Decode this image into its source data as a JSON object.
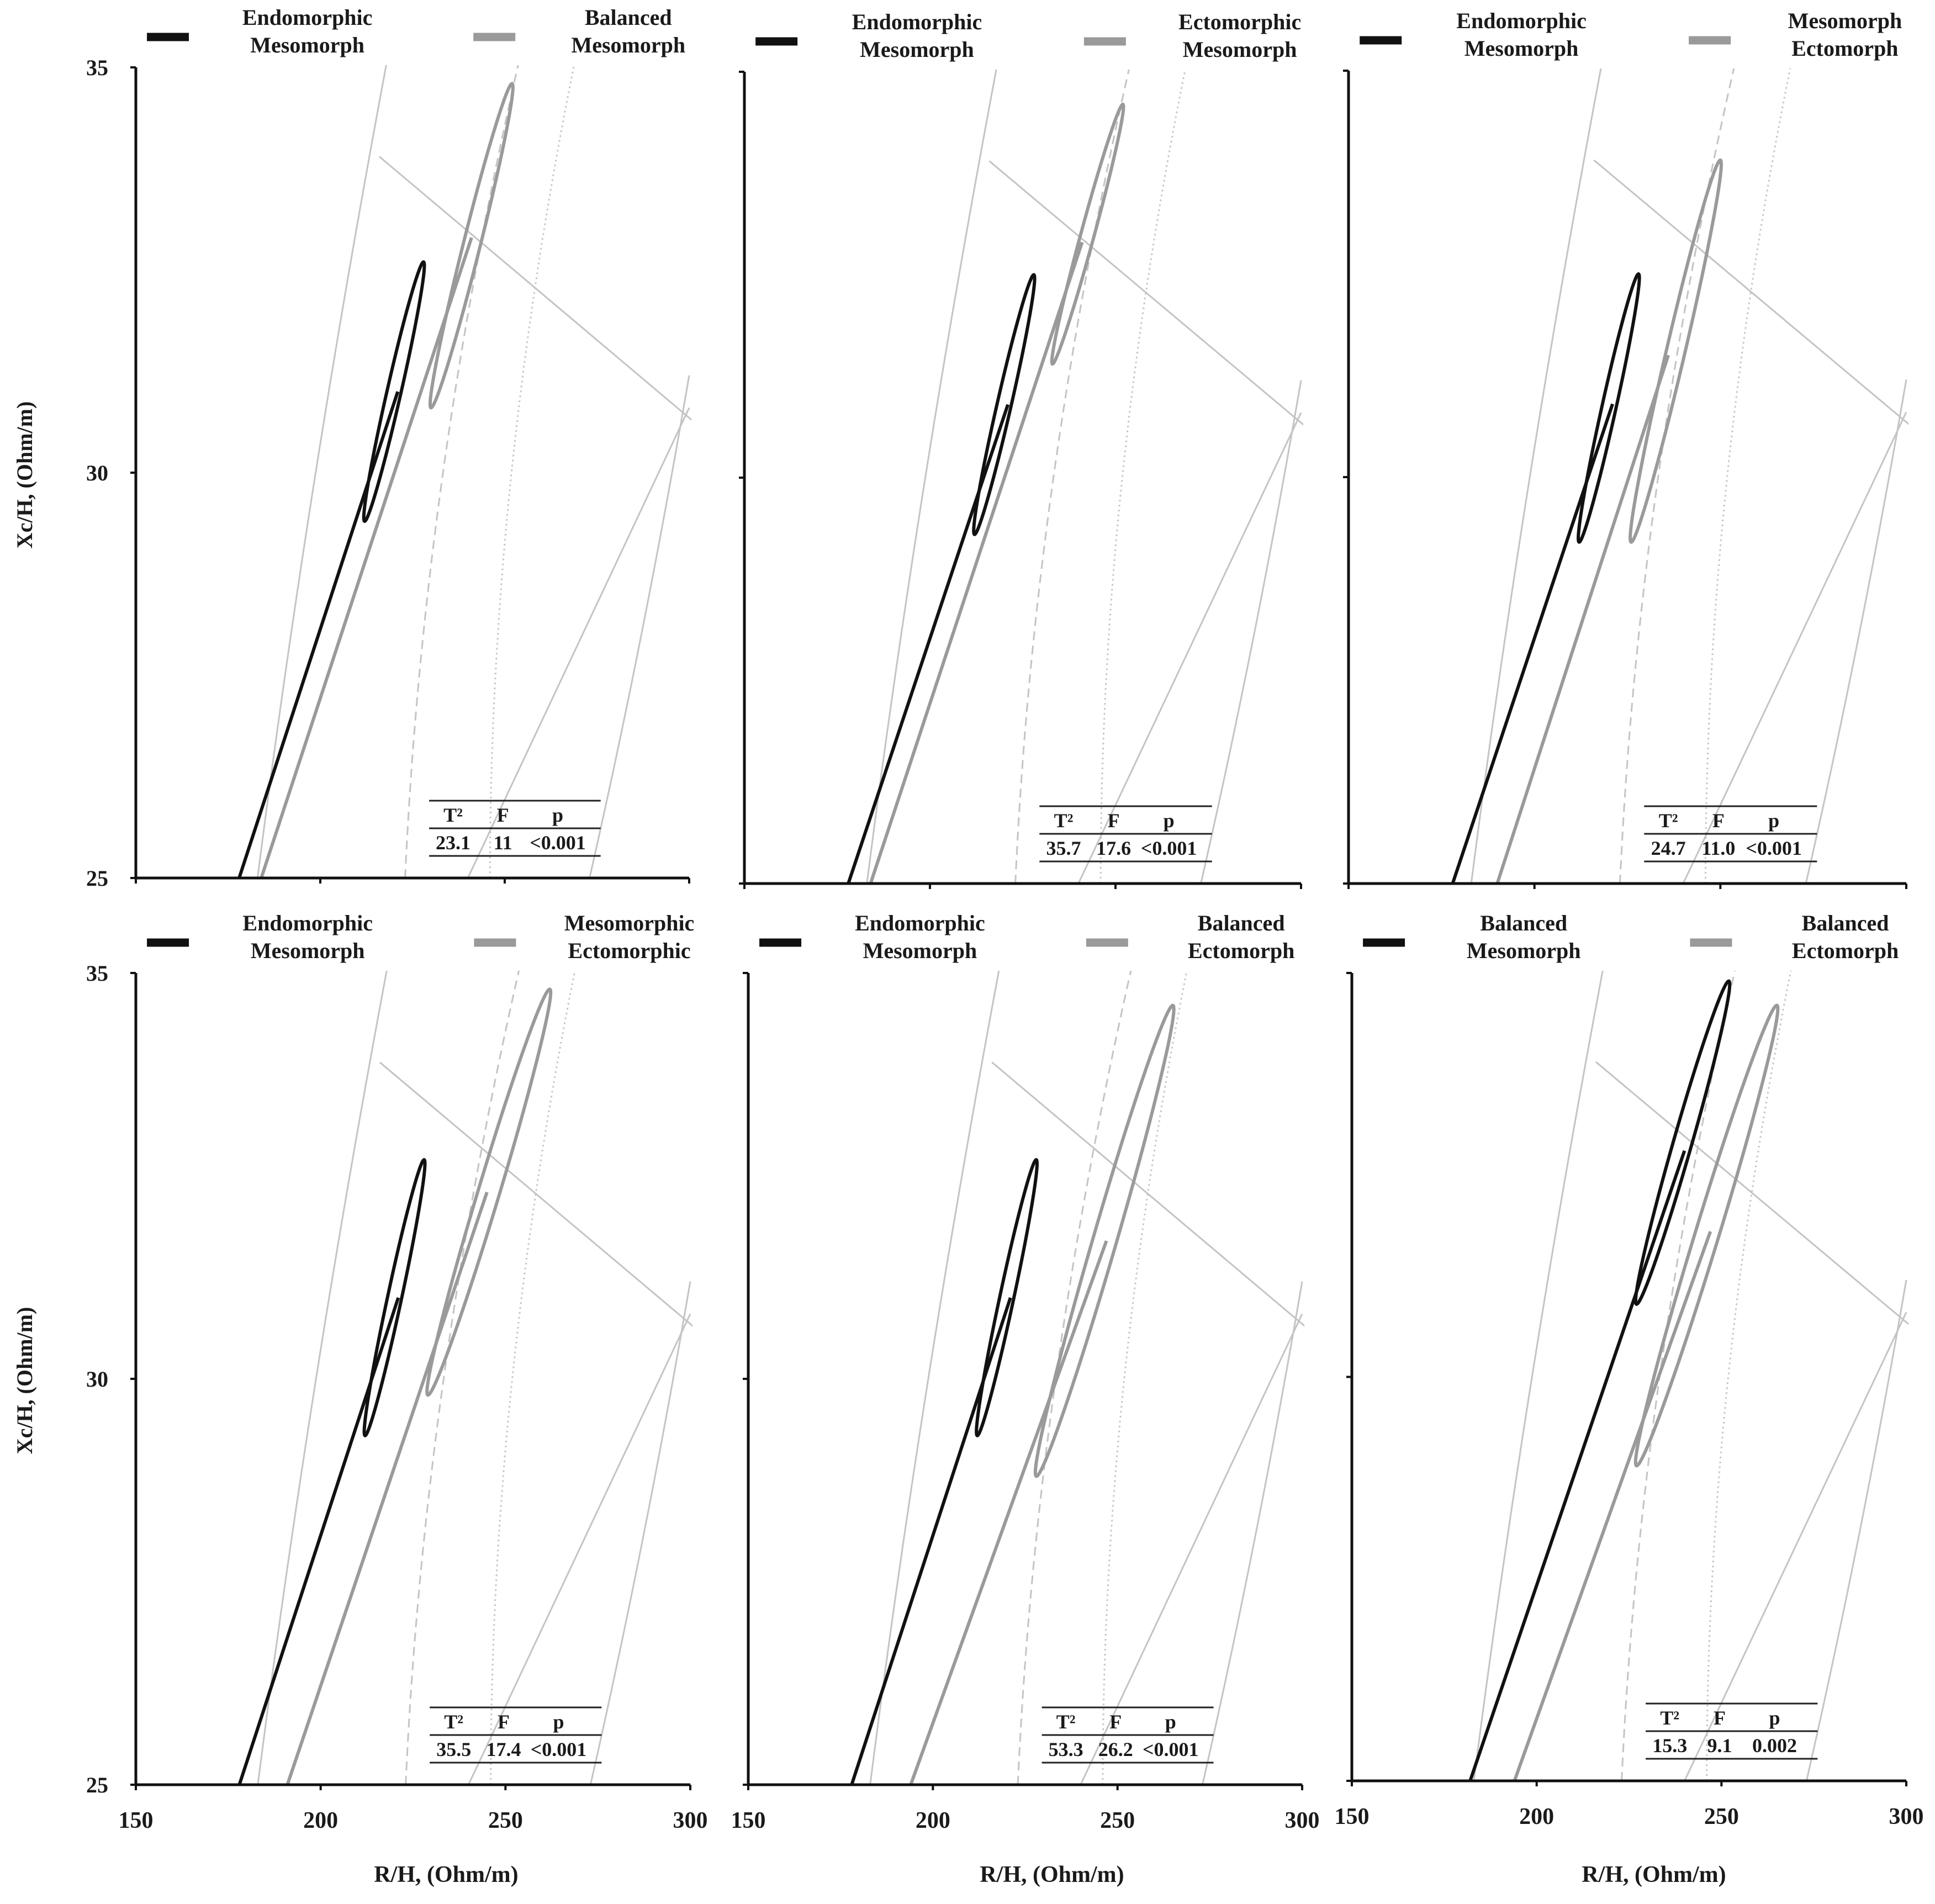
{
  "figure": {
    "y_axis_label": "Xc/H, (Ohm/m)",
    "x_axis_label": "R/H, (Ohm/m)"
  },
  "colors": {
    "group1": "#111111",
    "group2": "#9a9a9a",
    "grid": "#c4c4c4",
    "text": "#1a1a1a"
  },
  "chart_data": [
    {
      "type": "scatter",
      "subtype": "rxc-confidence-ellipses",
      "xlim": [
        150,
        300
      ],
      "ylim": [
        25,
        35
      ],
      "x_ticks": [
        150,
        200,
        250,
        300
      ],
      "y_ticks": [
        25,
        30,
        35
      ],
      "series": [
        {
          "name": "Endomorphic Mesomorph",
          "line1": "Endomorphic",
          "line2": "Mesomorph",
          "mean": [
            221,
            31.0
          ],
          "origin": [
            178,
            25.0
          ],
          "ellipse": {
            "top": [
              228,
              32.6
            ],
            "bottom": [
              212,
              29.4
            ],
            "width": 3.8
          }
        },
        {
          "name": "Balanced Mesomorph",
          "line1": "Balanced",
          "line2": "Mesomorph",
          "mean": [
            241,
            32.9
          ],
          "origin": [
            184,
            25.0
          ],
          "ellipse": {
            "top": [
              252,
              34.8
            ],
            "bottom": [
              230,
              30.8
            ],
            "width": 4.6
          }
        }
      ],
      "stats_header": {
        "t2": "T²",
        "f": "F",
        "p": "p"
      },
      "stats": {
        "t2": "23.1",
        "f": "11",
        "p": "<0.001"
      }
    },
    {
      "type": "scatter",
      "subtype": "rxc-confidence-ellipses",
      "xlim": [
        150,
        300
      ],
      "ylim": [
        25,
        35
      ],
      "x_ticks": [
        150,
        200,
        250,
        300
      ],
      "y_ticks": [
        25,
        30,
        35
      ],
      "series": [
        {
          "name": "Endomorphic Mesomorph",
          "line1": "Endomorphic",
          "line2": "Mesomorph",
          "mean": [
            221,
            30.9
          ],
          "origin": [
            178,
            25.0
          ],
          "ellipse": {
            "top": [
              228,
              32.5
            ],
            "bottom": [
              212,
              29.3
            ],
            "width": 3.8
          }
        },
        {
          "name": "Ectomorphic Mesomorph",
          "line1": "Ectomorphic",
          "line2": "Mesomorph",
          "mean": [
            241,
            32.9
          ],
          "origin": [
            184,
            25.0
          ],
          "ellipse": {
            "top": [
              252,
              34.6
            ],
            "bottom": [
              233,
              31.4
            ],
            "width": 3.6
          }
        }
      ],
      "stats_header": {
        "t2": "T²",
        "f": "F",
        "p": "p"
      },
      "stats": {
        "t2": "35.7",
        "f": "17.6",
        "p": "<0.001"
      }
    },
    {
      "type": "scatter",
      "subtype": "rxc-confidence-ellipses",
      "xlim": [
        150,
        300
      ],
      "ylim": [
        25,
        35
      ],
      "x_ticks": [
        150,
        200,
        250,
        300
      ],
      "y_ticks": [
        25,
        30,
        35
      ],
      "series": [
        {
          "name": "Endomorphic Mesomorph",
          "line1": "Endomorphic",
          "line2": "Mesomorph",
          "mean": [
            221,
            30.9
          ],
          "origin": [
            178,
            25.0
          ],
          "ellipse": {
            "top": [
              228,
              32.5
            ],
            "bottom": [
              212,
              29.2
            ],
            "width": 3.8
          }
        },
        {
          "name": "Mesomorph Ectomorph",
          "line1": "Mesomorph",
          "line2": "Ectomorph",
          "mean": [
            236,
            31.5
          ],
          "origin": [
            190,
            25.0
          ],
          "ellipse": {
            "top": [
              250,
              33.9
            ],
            "bottom": [
              226,
              29.2
            ],
            "width": 5.0
          }
        }
      ],
      "stats_header": {
        "t2": "T²",
        "f": "F",
        "p": "p"
      },
      "stats": {
        "t2": "24.7",
        "f": "11.0",
        "p": "<0.001"
      }
    },
    {
      "type": "scatter",
      "subtype": "rxc-confidence-ellipses",
      "xlim": [
        150,
        300
      ],
      "ylim": [
        25,
        35
      ],
      "x_ticks": [
        150,
        200,
        250,
        300
      ],
      "y_ticks": [
        25,
        30,
        35
      ],
      "series": [
        {
          "name": "Endomorphic Mesomorph",
          "line1": "Endomorphic",
          "line2": "Mesomorph",
          "mean": [
            221,
            31.0
          ],
          "origin": [
            178,
            25.0
          ],
          "ellipse": {
            "top": [
              228,
              32.7
            ],
            "bottom": [
              212,
              29.3
            ],
            "width": 3.8
          }
        },
        {
          "name": "Mesomorphic Ectomorphic",
          "line1": "Mesomorphic",
          "line2": "Ectomorphic",
          "mean": [
            245,
            32.3
          ],
          "origin": [
            191,
            25.0
          ],
          "ellipse": {
            "top": [
              262,
              34.8
            ],
            "bottom": [
              229,
              29.8
            ],
            "width": 5.8
          }
        }
      ],
      "stats_header": {
        "t2": "T²",
        "f": "F",
        "p": "p"
      },
      "stats": {
        "t2": "35.5",
        "f": "17.4",
        "p": "<0.001"
      }
    },
    {
      "type": "scatter",
      "subtype": "rxc-confidence-ellipses",
      "xlim": [
        150,
        300
      ],
      "ylim": [
        25,
        35
      ],
      "x_ticks": [
        150,
        200,
        250,
        300
      ],
      "y_ticks": [
        25,
        30,
        35
      ],
      "series": [
        {
          "name": "Endomorphic Mesomorph",
          "line1": "Endomorphic",
          "line2": "Mesomorph",
          "mean": [
            221,
            31.0
          ],
          "origin": [
            178,
            25.0
          ],
          "ellipse": {
            "top": [
              228,
              32.7
            ],
            "bottom": [
              212,
              29.3
            ],
            "width": 3.8
          }
        },
        {
          "name": "Balanced Ectomorph",
          "line1": "Balanced",
          "line2": "Ectomorph",
          "mean": [
            247,
            31.7
          ],
          "origin": [
            194,
            25.0
          ],
          "ellipse": {
            "top": [
              265,
              34.6
            ],
            "bottom": [
              228,
              28.8
            ],
            "width": 6.4
          }
        }
      ],
      "stats_header": {
        "t2": "T²",
        "f": "F",
        "p": "p"
      },
      "stats": {
        "t2": "53.3",
        "f": "26.2",
        "p": "<0.001"
      }
    },
    {
      "type": "scatter",
      "subtype": "rxc-confidence-ellipses",
      "xlim": [
        150,
        300
      ],
      "ylim": [
        25,
        35
      ],
      "x_ticks": [
        150,
        200,
        250,
        300
      ],
      "y_ticks": [
        25,
        30,
        35
      ],
      "series": [
        {
          "name": "Balanced Mesomorph",
          "line1": "Balanced",
          "line2": "Mesomorph",
          "mean": [
            240,
            32.8
          ],
          "origin": [
            182,
            25.0
          ],
          "ellipse": {
            "top": [
              252,
              34.9
            ],
            "bottom": [
              227,
              30.9
            ],
            "width": 5.0
          }
        },
        {
          "name": "Balanced Ectomorph",
          "line1": "Balanced",
          "line2": "Ectomorph",
          "mean": [
            247,
            31.8
          ],
          "origin": [
            194,
            25.0
          ],
          "ellipse": {
            "top": [
              265,
              34.6
            ],
            "bottom": [
              227,
              28.9
            ],
            "width": 6.4
          }
        }
      ],
      "stats_header": {
        "t2": "T²",
        "f": "F",
        "p": "p"
      },
      "stats": {
        "t2": "15.3",
        "f": "9.1",
        "p": "0.002"
      }
    }
  ]
}
